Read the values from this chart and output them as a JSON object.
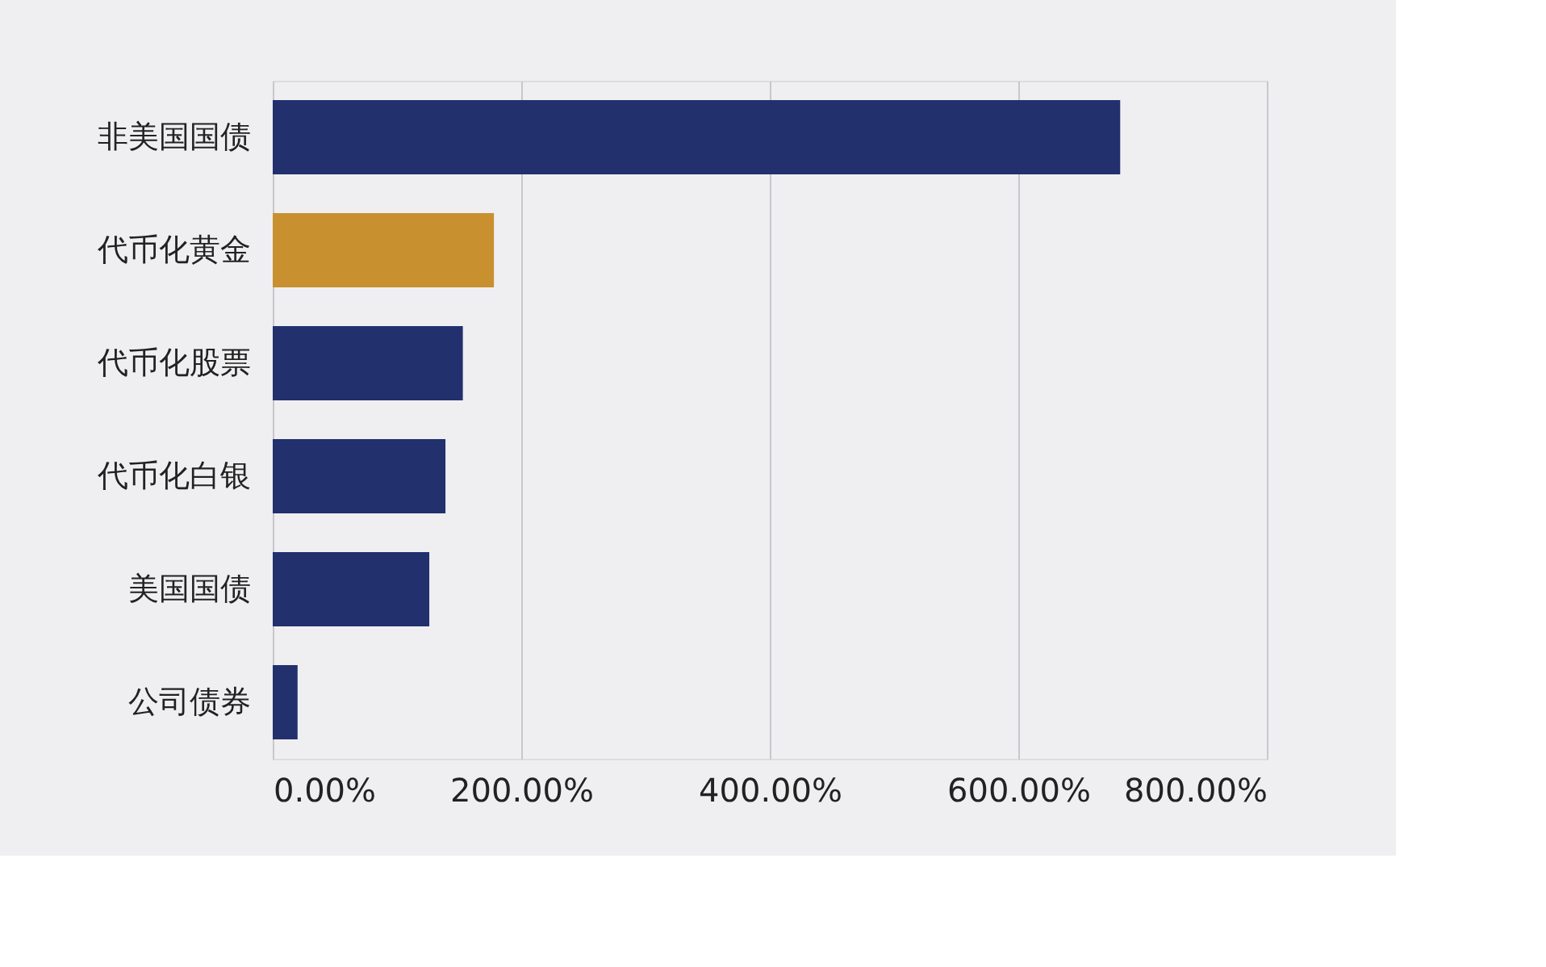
{
  "chart_data": {
    "type": "bar",
    "orientation": "horizontal",
    "categories": [
      "非美国国债",
      "代币化黄金",
      "代币化股票",
      "代币化白银",
      "美国国债",
      "公司债券"
    ],
    "values": [
      682,
      178,
      153,
      139,
      126,
      20
    ],
    "colors": [
      "#22306e",
      "#c9902f",
      "#22306e",
      "#22306e",
      "#22306e",
      "#22306e"
    ],
    "xlim": [
      0,
      800
    ],
    "xticks": [
      {
        "value": 0,
        "label": "0.00%"
      },
      {
        "value": 200,
        "label": "200.00%"
      },
      {
        "value": 400,
        "label": "400.00%"
      },
      {
        "value": 600,
        "label": "600.00%"
      },
      {
        "value": 800,
        "label": "800.00%"
      }
    ],
    "grid": "x"
  }
}
